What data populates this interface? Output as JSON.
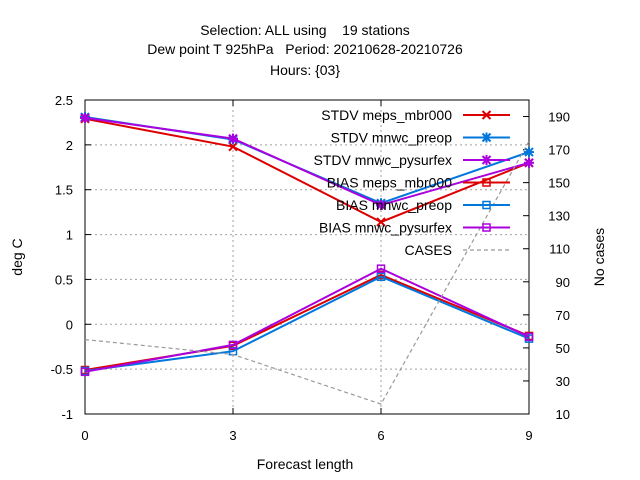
{
  "chart_data": {
    "type": "line",
    "title": [
      "Selection: ALL using    19 stations",
      "Dew point T 925hPa   Period: 20210628-20210726",
      "Hours: {03}"
    ],
    "xlabel": "Forecast length",
    "ylabel": "deg C",
    "y2label": "No cases",
    "x": [
      0,
      3,
      6,
      9
    ],
    "xlim": [
      0,
      9
    ],
    "ylim": [
      -1,
      2.5
    ],
    "y2lim": [
      10,
      200
    ],
    "x_ticks": [
      "0",
      "3",
      "6",
      "9"
    ],
    "y_ticks": [
      "-1",
      "-0.5",
      "0",
      "0.5",
      "1",
      "1.5",
      "2",
      "2.5"
    ],
    "y2_ticks": [
      "10",
      "30",
      "50",
      "70",
      "90",
      "110",
      "130",
      "150",
      "170",
      "190"
    ],
    "grid": true,
    "legend_position": "top-right",
    "series": [
      {
        "name": "STDV meps_mbr000",
        "values": [
          2.29,
          1.98,
          1.14,
          1.8
        ],
        "color": "#dd0000",
        "marker": "x",
        "axis": "y"
      },
      {
        "name": "STDV mnwc_preop",
        "values": [
          2.31,
          2.06,
          1.35,
          1.92
        ],
        "color": "#0077dd",
        "marker": "star",
        "axis": "y"
      },
      {
        "name": "STDV mnwc_pysurfex",
        "values": [
          2.3,
          2.07,
          1.33,
          1.8
        ],
        "color": "#aa00dd",
        "marker": "star",
        "axis": "y"
      },
      {
        "name": "BIAS meps_mbr000",
        "values": [
          -0.51,
          -0.24,
          0.55,
          -0.13
        ],
        "color": "#dd0000",
        "marker": "square",
        "axis": "y"
      },
      {
        "name": "BIAS mnwc_preop",
        "values": [
          -0.52,
          -0.3,
          0.53,
          -0.16
        ],
        "color": "#0077dd",
        "marker": "square",
        "axis": "y"
      },
      {
        "name": "BIAS mnwc_pysurfex",
        "values": [
          -0.53,
          -0.23,
          0.62,
          -0.14
        ],
        "color": "#aa00dd",
        "marker": "square",
        "axis": "y"
      },
      {
        "name": "CASES",
        "values": [
          55,
          46,
          16,
          175
        ],
        "color": "#999999",
        "marker": "none",
        "axis": "y2",
        "dashed": true
      }
    ]
  }
}
